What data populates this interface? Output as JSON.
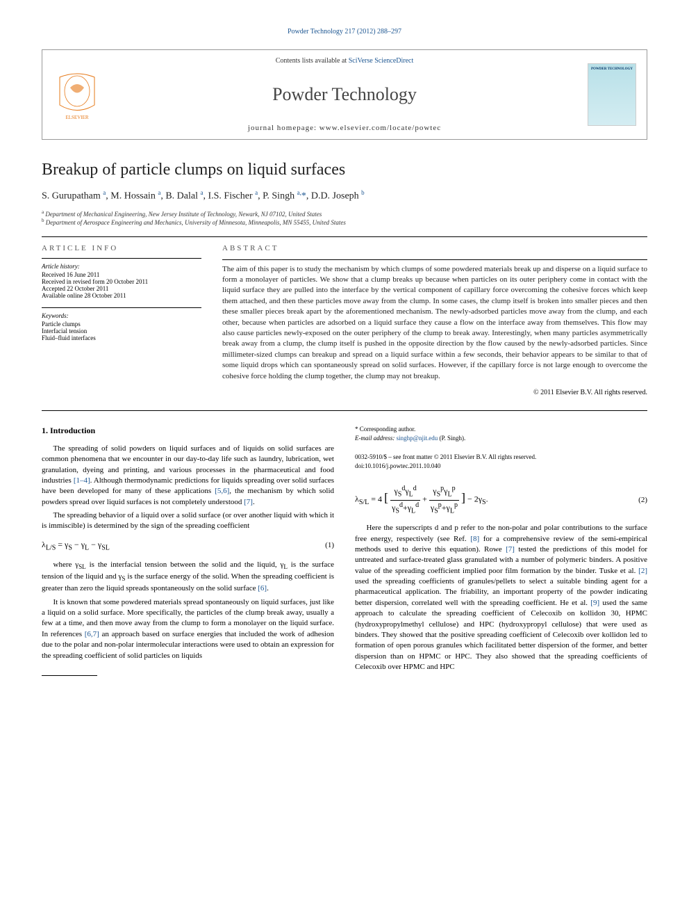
{
  "top_link": "Powder Technology 217 (2012) 288–297",
  "header": {
    "contents_prefix": "Contents lists available at ",
    "contents_link": "SciVerse ScienceDirect",
    "journal_name": "Powder Technology",
    "homepage": "journal homepage: www.elsevier.com/locate/powtec"
  },
  "article": {
    "title": "Breakup of particle clumps on liquid surfaces",
    "authors_html": "S. Gurupatham <sup>a</sup>, M. Hossain <sup>a</sup>, B. Dalal <sup>a</sup>, I.S. Fischer <sup>a</sup>, P. Singh <sup>a,</sup><span class='corr'>*</span>, D.D. Joseph <sup>b</sup>",
    "affiliations": {
      "a": "Department of Mechanical Engineering, New Jersey Institute of Technology, Newark, NJ 07102, United States",
      "b": "Department of Aerospace Engineering and Mechanics, University of Minnesota, Minneapolis, MN 55455, United States"
    }
  },
  "meta": {
    "article_info_label": "ARTICLE INFO",
    "history_title": "Article history:",
    "history": [
      "Received 16 June 2011",
      "Received in revised form 20 October 2011",
      "Accepted 22 October 2011",
      "Available online 28 October 2011"
    ],
    "keywords_title": "Keywords:",
    "keywords": [
      "Particle clumps",
      "Interfacial tension",
      "Fluid–fluid interfaces"
    ]
  },
  "abstract": {
    "label": "ABSTRACT",
    "text": "The aim of this paper is to study the mechanism by which clumps of some powdered materials break up and disperse on a liquid surface to form a monolayer of particles. We show that a clump breaks up because when particles on its outer periphery come in contact with the liquid surface they are pulled into the interface by the vertical component of capillary force overcoming the cohesive forces which keep them attached, and then these particles move away from the clump. In some cases, the clump itself is broken into smaller pieces and then these smaller pieces break apart by the aforementioned mechanism. The newly-adsorbed particles move away from the clump, and each other, because when particles are adsorbed on a liquid surface they cause a flow on the interface away from themselves. This flow may also cause particles newly-exposed on the outer periphery of the clump to break away. Interestingly, when many particles asymmetrically break away from a clump, the clump itself is pushed in the opposite direction by the flow caused by the newly-adsorbed particles. Since millimeter-sized clumps can breakup and spread on a liquid surface within a few seconds, their behavior appears to be similar to that of some liquid drops which can spontaneously spread on solid surfaces. However, if the capillary force is not large enough to overcome the cohesive force holding the clump together, the clump may not breakup.",
    "copyright": "© 2011 Elsevier B.V. All rights reserved."
  },
  "body": {
    "intro_heading": "1. Introduction",
    "para1_part1": "The spreading of solid powders on liquid surfaces and of liquids on solid surfaces are common phenomena that we encounter in our day-to-day life such as laundry, lubrication, wet granulation, dyeing and printing, and various processes in the pharmaceutical and food industries ",
    "para1_ref1": "[1–4]",
    "para1_part2": ". Although thermodynamic predictions for liquids spreading over solid surfaces have been developed for many of these applications ",
    "para1_ref2": "[5,6]",
    "para1_part3": ", the mechanism by which solid powders spread over liquid surfaces is not completely understood ",
    "para1_ref3": "[7]",
    "para1_part4": ".",
    "para2": "The spreading behavior of a liquid over a solid surface (or over another liquid with which it is immiscible) is determined by the sign of the spreading coefficient",
    "eq1": "λ_{L/S} = γ_S − γ_L − γ_{SL}",
    "eq1_num": "(1)",
    "para3_part1": "where γ_{SL} is the interfacial tension between the solid and the liquid, γ_L is the surface tension of the liquid and γ_S is the surface energy of the solid. When the spreading coefficient is greater than zero the liquid spreads spontaneously on the solid surface ",
    "para3_ref1": "[6]",
    "para3_part2": ".",
    "para4_part1": "It is known that some powdered materials spread spontaneously on liquid surfaces, just like a liquid on a solid surface. More specifically, the particles of the clump break away, usually a few at a time, and then move away from the clump to form a monolayer on the liquid surface. In references ",
    "para4_ref1": "[6,7]",
    "para4_part2": " an approach based on surface energies that included the work of adhesion due to the polar and non-polar intermolecular interactions were used to obtain an expression for the spreading coefficient of solid particles on liquids",
    "eq2_num": "(2)",
    "para5_part1": "Here the superscripts d and p refer to the non-polar and polar contributions to the surface free energy, respectively (see Ref. ",
    "para5_ref1": "[8]",
    "para5_part2": " for a comprehensive review of the semi-empirical methods used to derive this equation). Rowe ",
    "para5_ref2": "[7]",
    "para5_part3": " tested the predictions of this model for untreated and surface-treated glass granulated with a number of polymeric binders. A positive value of the spreading coefficient implied poor film formation by the binder. Tuske et al. ",
    "para5_ref3": "[2]",
    "para5_part4": " used the spreading coefficients of granules/pellets to select a suitable binding agent for a pharmaceutical application. The friability, an important property of the powder indicating better dispersion, correlated well with the spreading coefficient. He et al. ",
    "para5_ref4": "[9]",
    "para5_part5": " used the same approach to calculate the spreading coefficient of Celecoxib on kollidon 30, HPMC (hydroxypropylmethyl cellulose) and HPC (hydroxypropyl cellulose) that were used as binders. They showed that the positive spreading coefficient of Celecoxib over kollidon led to formation of open porous granules which facilitated better dispersion of the former, and better dispersion than on HPMC or HPC. They also showed that the spreading coefficients of Celecoxib over HPMC and HPC"
  },
  "footnotes": {
    "corr": "* Corresponding author.",
    "email_label": "E-mail address: ",
    "email": "singhp@njit.edu",
    "email_suffix": " (P. Singh)."
  },
  "bottom": {
    "issn": "0032-5910/$ – see front matter © 2011 Elsevier B.V. All rights reserved.",
    "doi": "doi:10.1016/j.powtec.2011.10.040"
  },
  "colors": {
    "link": "#1a5490",
    "text": "#222222",
    "border": "#999999"
  }
}
